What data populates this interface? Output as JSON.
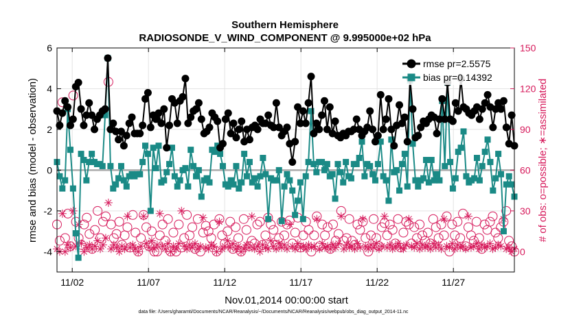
{
  "chart_data": {
    "type": "line",
    "title_lines": [
      "Southern Hemisphere",
      "RADIOSONDE_V_WIND_COMPONENT @ 9.995000e+02 hPa"
    ],
    "xlabel": "Nov.01,2014 00:00:00 start",
    "ylabel": "rmse and bias (model - observation)",
    "y2label": "# of obs: o=possible; ∗=assimilated",
    "footnote": "data file: /Users/gharamti/Documents/NCAR/Reanalysis/~/Documents/NCAR/Reanalysis/webpub/obs_diag_output_2014-11.nc",
    "x_ticks": [
      {
        "day": 2,
        "label": "11/02"
      },
      {
        "day": 7,
        "label": "11/07"
      },
      {
        "day": 12,
        "label": "11/12"
      },
      {
        "day": 17,
        "label": "11/17"
      },
      {
        "day": 22,
        "label": "11/22"
      },
      {
        "day": 27,
        "label": "11/27"
      }
    ],
    "x_range": [
      1.0,
      31.0
    ],
    "y_ticks": [
      -4,
      -2,
      0,
      2,
      4,
      6
    ],
    "y_range": [
      -5,
      6
    ],
    "y2_ticks": [
      0,
      30,
      60,
      90,
      120,
      150
    ],
    "y2_range": [
      -15,
      150
    ],
    "grid": true,
    "legend_position": "top-right",
    "colors": {
      "rmse": "#000000",
      "bias": "#1a8a86",
      "obs": "#d6185a",
      "zero_line": "#aaaaaa"
    },
    "series": [
      {
        "name": "rmse pr=2.5575",
        "marker": "circle",
        "values": [
          2.9,
          2.2,
          2.8,
          3.4,
          3.1,
          2.2,
          2.5,
          4.1,
          4.3,
          3.0,
          2.2,
          2.7,
          3.3,
          2.7,
          2.0,
          2.5,
          2.7,
          2.9,
          3.0,
          5.5,
          2.0,
          2.3,
          1.9,
          1.5,
          1.9,
          1.2,
          1.7,
          2.3,
          2.6,
          1.8,
          1.8,
          1.8,
          2.2,
          3.5,
          3.8,
          2.1,
          2.7,
          2.5,
          2.8,
          2.3,
          3.0,
          1.1,
          2.2,
          3.5,
          3.3,
          2.3,
          3.4,
          3.6,
          4.5,
          2.3,
          2.6,
          2.9,
          3.0,
          3.3,
          2.5,
          1.8,
          1.9,
          2.1,
          2.8,
          2.6,
          2.4,
          1.1,
          1.3,
          2.5,
          2.8,
          1.8,
          2.3,
          1.6,
          2.0,
          2.4,
          1.4,
          2.0,
          1.5,
          2.1,
          2.2,
          2.0,
          2.5,
          2.3,
          2.3,
          2.7,
          2.2,
          2.1,
          3.3,
          2.1,
          1.7,
          1.9,
          2.1,
          1.3,
          0.4,
          1.4,
          3.1,
          2.3,
          2.9,
          2.3,
          3.3,
          4.6,
          1.8,
          2.3,
          2.0,
          2.7,
          3.4,
          2.0,
          3.1,
          1.8,
          2.4,
          1.7,
          1.6,
          1.8,
          1.7,
          1.9,
          1.9,
          2.0,
          2.5,
          2.0,
          1.7,
          1.9,
          2.1,
          2.9,
          2.0,
          1.4,
          1.7,
          3.7,
          2.0,
          2.5,
          3.5,
          2.0,
          1.2,
          2.2,
          3.2,
          2.3,
          2.6,
          1.4,
          4.5,
          3.0,
          1.6,
          1.7,
          2.1,
          2.4,
          2.3,
          2.5,
          2.7,
          2.6,
          1.8,
          2.5,
          3.5,
          2.5,
          4.3,
          2.5,
          2.4,
          3.3,
          2.9,
          4.5,
          3.1,
          3.0,
          2.8,
          2.7,
          2.9,
          3.1,
          2.5,
          3.0,
          3.3,
          3.7,
          3.1,
          2.1,
          3.0,
          3.3,
          3.0,
          3.4,
          2.1,
          1.3,
          2.7,
          1.2
        ]
      },
      {
        "name": "bias pr=0.14392",
        "marker": "square",
        "values": [
          0.4,
          -0.3,
          -0.9,
          -0.5,
          3.0,
          1.0,
          -0.9,
          -3.1,
          -4.3,
          0.8,
          0.5,
          -0.5,
          0.4,
          0.8,
          0.4,
          0.3,
          0.3,
          0.2,
          2.7,
          5.5,
          0.2,
          -0.9,
          -0.7,
          -0.4,
          0.2,
          -0.5,
          -0.8,
          -0.3,
          -0.2,
          -0.3,
          -0.2,
          -0.2,
          0.4,
          1.2,
          0.8,
          -2.0,
          1.1,
          0.1,
          1.2,
          -0.6,
          -0.5,
          -0.1,
          0.3,
          1.1,
          -0.3,
          -0.8,
          -0.5,
          0.0,
          0.1,
          -0.8,
          1.0,
          0.2,
          -0.3,
          0.0,
          -1.3,
          -0.5,
          -0.4,
          -0.6,
          1.0,
          0.9,
          1.2,
          0.8,
          0.2,
          -0.7,
          -0.8,
          -0.5,
          -0.7,
          0.2,
          -0.9,
          -0.6,
          0.8,
          -0.3,
          0.4,
          -0.6,
          -0.4,
          -0.8,
          -0.3,
          0.6,
          -0.2,
          -2.4,
          -0.4,
          -0.5,
          -0.5,
          0.0,
          -2.5,
          -0.8,
          -0.2,
          -0.5,
          -1.0,
          -2.2,
          -1.5,
          -0.6,
          -2.4,
          -0.3,
          0.4,
          2.9,
          0.3,
          -0.1,
          0.4,
          0.4,
          0.0,
          0.3,
          -0.3,
          -0.2,
          -1.4,
          0.3,
          -0.1,
          -0.6,
          0.4,
          -0.3,
          -0.4,
          0.3,
          0.3,
          0.6,
          1.4,
          -0.3,
          0.3,
          0.2,
          -0.2,
          -0.5,
          0.3,
          1.4,
          -0.3,
          -0.5,
          -1.5,
          1.5,
          -0.1,
          0.0,
          -1.0,
          0.3,
          0.8,
          -0.8,
          4.4,
          1.3,
          -0.5,
          -0.8,
          -0.5,
          -0.4,
          0.5,
          -0.6,
          0.5,
          -0.5,
          -0.2,
          -0.5,
          3.4,
          0.2,
          4.3,
          0.4,
          -0.9,
          -0.4,
          0.9,
          1.1,
          1.9,
          -0.3,
          -0.6,
          -0.5,
          -0.4,
          0.6,
          -0.5,
          0.2,
          0.9,
          1.5,
          0.4,
          -1.0,
          -0.4,
          0.8,
          -0.2,
          -3.0,
          -0.7,
          -0.3,
          -0.7,
          -1.3
        ]
      },
      {
        "name": "possible",
        "marker": "open-circle",
        "axis": "right",
        "values": [
          20,
          8,
          110,
          10,
          28,
          4,
          115,
          22,
          10,
          5,
          20,
          25,
          13,
          2,
          16,
          30,
          10,
          22,
          26,
          125,
          20,
          10,
          13,
          22,
          5,
          12,
          18,
          3,
          27,
          14,
          0,
          10,
          27,
          18,
          4,
          15,
          0,
          0,
          12,
          20,
          8,
          24,
          0,
          14,
          0,
          20,
          3,
          10,
          27,
          12,
          18,
          2,
          24,
          0,
          14,
          19,
          15,
          10,
          20,
          0,
          24,
          12,
          6,
          15,
          22,
          2,
          18,
          10,
          0,
          24,
          16,
          4,
          8,
          6,
          20,
          22,
          5,
          12,
          25,
          20,
          16,
          5,
          10,
          22,
          12,
          20,
          23,
          6,
          14,
          25,
          3,
          12,
          22,
          16,
          0,
          12,
          26,
          4,
          20,
          12,
          18,
          2,
          20,
          8,
          13,
          30,
          8,
          10,
          24,
          8,
          5,
          20,
          16,
          22,
          10,
          0,
          12,
          24,
          10,
          4,
          18,
          21,
          12,
          20,
          16,
          6,
          24,
          3,
          14,
          22,
          20,
          6,
          18,
          10,
          20,
          12,
          8,
          14,
          6,
          24,
          18,
          10,
          20,
          12,
          26,
          0,
          20,
          12,
          22,
          10,
          28,
          4,
          18,
          12,
          8,
          22,
          10,
          2,
          20,
          16,
          22,
          26,
          14,
          10,
          18,
          22,
          30,
          8,
          4,
          0
        ]
      },
      {
        "name": "assimilated",
        "marker": "asterisk",
        "axis": "right",
        "values": [
          2,
          0,
          28,
          0,
          5,
          3,
          30,
          4,
          20,
          6,
          0,
          3,
          5,
          2,
          4,
          8,
          2,
          5,
          10,
          36,
          2,
          5,
          3,
          0,
          4,
          2,
          26,
          3,
          5,
          2,
          0,
          4,
          26,
          6,
          3,
          8,
          2,
          5,
          28,
          4,
          2,
          6,
          0,
          4,
          2,
          6,
          30,
          4,
          2,
          5,
          3,
          6,
          2,
          4,
          25,
          3,
          2,
          5,
          4,
          0,
          22,
          2,
          4,
          8,
          3,
          6,
          2,
          4,
          0,
          2,
          5,
          3,
          26,
          2,
          4,
          0,
          5,
          3,
          2,
          8,
          4,
          2,
          6,
          3,
          5,
          2,
          20,
          4,
          2,
          6,
          3,
          4,
          2,
          5,
          3,
          4,
          24,
          2,
          6,
          3,
          4,
          2,
          5,
          3,
          6,
          26,
          2,
          5,
          3,
          4,
          2,
          6,
          3,
          24,
          4,
          2,
          5,
          3,
          6,
          2,
          4,
          26,
          3,
          5,
          2,
          4,
          6,
          3,
          2,
          5,
          24,
          4,
          3,
          6,
          2,
          5,
          3,
          4,
          2,
          6,
          3,
          5,
          2,
          24,
          4,
          3,
          6,
          2,
          5,
          3,
          4,
          2,
          26,
          3,
          4,
          6,
          2,
          5,
          3,
          4,
          6,
          2,
          3,
          5,
          4,
          24,
          2,
          3,
          0,
          2
        ]
      }
    ]
  }
}
